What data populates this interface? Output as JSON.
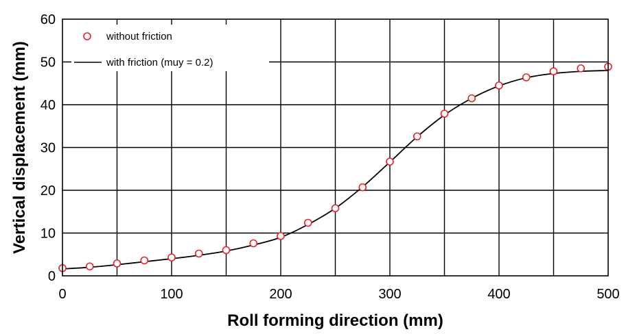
{
  "chart_data": {
    "type": "line",
    "title": "",
    "xlabel": "Roll forming direction (mm)",
    "ylabel": "Vertical displacement (mm)",
    "xlim": [
      0,
      500
    ],
    "ylim": [
      0,
      60
    ],
    "xticks": [
      0,
      100,
      200,
      300,
      400,
      500
    ],
    "yticks": [
      0,
      10,
      20,
      30,
      40,
      50,
      60
    ],
    "grid": true,
    "legend_position": "top-left",
    "series": [
      {
        "name": "without friction",
        "style": "markers",
        "color": "#e8202a",
        "x": [
          0,
          25,
          50,
          75,
          100,
          125,
          150,
          175,
          200,
          225,
          250,
          275,
          300,
          325,
          350,
          375,
          400,
          425,
          450,
          475,
          500
        ],
        "y": [
          1.8,
          2.2,
          2.9,
          3.6,
          4.3,
          5.2,
          6.0,
          7.6,
          9.3,
          12.4,
          15.8,
          20.7,
          26.7,
          32.6,
          37.9,
          41.5,
          44.5,
          46.4,
          47.8,
          48.5,
          48.9
        ]
      },
      {
        "name": "with friction (muy = 0.2)",
        "style": "line",
        "color": "#000000",
        "x": [
          0,
          25,
          50,
          75,
          100,
          125,
          150,
          175,
          200,
          225,
          250,
          275,
          300,
          325,
          350,
          375,
          400,
          425,
          450,
          475,
          500
        ],
        "y": [
          1.6,
          2.0,
          2.6,
          3.3,
          4.0,
          4.8,
          5.8,
          7.2,
          9.0,
          12.0,
          15.8,
          20.8,
          26.6,
          32.5,
          37.6,
          41.5,
          44.4,
          46.3,
          47.3,
          47.8,
          48.0
        ]
      }
    ]
  },
  "legend": {
    "markers_label": "without friction",
    "line_label": "with friction (muy = 0.2)"
  }
}
